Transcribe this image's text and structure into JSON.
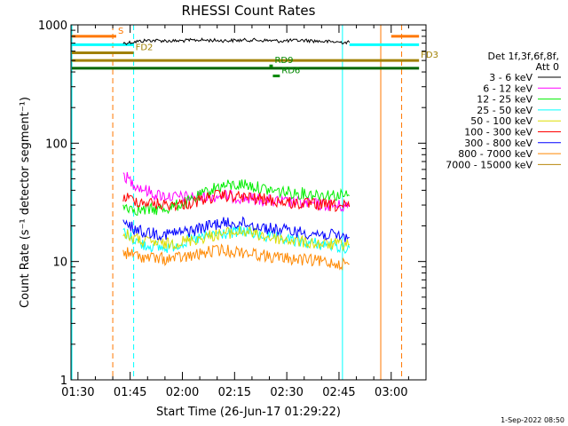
{
  "chart_data": {
    "type": "line",
    "title": "RHESSI Count Rates",
    "xlabel": "Start Time (26-Jun-17 01:29:22)",
    "ylabel": "Count Rate (s⁻¹ detector segment⁻¹)",
    "y_scale": "log",
    "ylim": [
      1,
      1000
    ],
    "xlim": [
      "01:28",
      "03:10"
    ],
    "x_ticks": [
      "01:30",
      "01:45",
      "02:00",
      "02:15",
      "02:30",
      "02:45",
      "03:00"
    ],
    "y_ticks": [
      1,
      10,
      100,
      1000
    ],
    "legend_header": [
      "Det 1f,3f,6f,8f,",
      "Att 0"
    ],
    "legend_placement": "right",
    "series": [
      {
        "name": "3 - 6 keV",
        "color": "#000000",
        "x": [
          "01:43",
          "01:50",
          "01:58",
          "02:05",
          "02:12",
          "02:20",
          "02:28",
          "02:35",
          "02:42",
          "02:48"
        ],
        "values": [
          700,
          740,
          730,
          745,
          735,
          745,
          730,
          740,
          720,
          710
        ]
      },
      {
        "name": "6 - 12 keV",
        "color": "#ff00ff",
        "x": [
          "01:43",
          "01:45",
          "01:48",
          "01:52",
          "01:58",
          "02:05",
          "02:12",
          "02:20",
          "02:28",
          "02:35",
          "02:42",
          "02:48"
        ],
        "values": [
          55,
          48,
          42,
          37,
          35,
          35,
          36,
          34,
          32,
          31,
          30,
          29
        ]
      },
      {
        "name": "12 - 25 keV",
        "color": "#00ee00",
        "x": [
          "01:43",
          "01:48",
          "01:55",
          "02:02",
          "02:10",
          "02:18",
          "02:25",
          "02:32",
          "02:40",
          "02:48"
        ],
        "values": [
          30,
          27,
          28,
          32,
          43,
          45,
          40,
          38,
          37,
          36
        ]
      },
      {
        "name": "25 - 50 keV",
        "color": "#00ffff",
        "x": [
          "01:43",
          "01:48",
          "01:55",
          "02:02",
          "02:10",
          "02:18",
          "02:25",
          "02:32",
          "02:40",
          "02:48"
        ],
        "values": [
          18,
          14,
          13,
          15,
          17,
          18,
          16,
          15,
          14,
          13
        ]
      },
      {
        "name": "50 - 100 keV",
        "color": "#dddd00",
        "x": [
          "01:43",
          "01:48",
          "01:55",
          "02:02",
          "02:10",
          "02:18",
          "02:25",
          "02:32",
          "02:40",
          "02:48"
        ],
        "values": [
          17,
          15,
          14,
          15,
          17,
          18,
          16,
          15,
          14,
          14
        ]
      },
      {
        "name": "100 - 300 keV",
        "color": "#ff0000",
        "x": [
          "01:43",
          "01:48",
          "01:55",
          "02:02",
          "02:10",
          "02:18",
          "02:25",
          "02:32",
          "02:40",
          "02:48"
        ],
        "values": [
          35,
          32,
          30,
          31,
          36,
          35,
          33,
          31,
          30,
          29
        ]
      },
      {
        "name": "300 - 800 keV",
        "color": "#0000ff",
        "x": [
          "01:43",
          "01:48",
          "01:55",
          "02:02",
          "02:10",
          "02:18",
          "02:25",
          "02:32",
          "02:40",
          "02:48"
        ],
        "values": [
          21,
          18,
          17,
          18,
          21,
          21,
          19,
          18,
          17,
          16
        ]
      },
      {
        "name": "800 - 7000 keV",
        "color": "#ff8800",
        "x": [
          "01:43",
          "01:48",
          "01:55",
          "02:02",
          "02:10",
          "02:18",
          "02:25",
          "02:32",
          "02:40",
          "02:48"
        ],
        "values": [
          12,
          11,
          10.5,
          11,
          12.5,
          12,
          11,
          10.5,
          10,
          9.5
        ]
      },
      {
        "name": "7000 - 15000 keV",
        "color": "#b8860b",
        "x": [],
        "values": []
      }
    ],
    "flag_bars": [
      {
        "label": "S",
        "color": "#ff7700",
        "y": 800,
        "segments": [
          [
            "01:28",
            "01:41"
          ],
          [
            "03:00",
            "03:08"
          ]
        ]
      },
      {
        "label": "",
        "color": "#00ffff",
        "y": 680,
        "segments": [
          [
            "01:28",
            "01:46"
          ],
          [
            "02:48",
            "03:08"
          ]
        ]
      },
      {
        "label": "FD2",
        "color": "#a08000",
        "y": 580,
        "segments": [
          [
            "01:28",
            "01:46"
          ]
        ]
      },
      {
        "label": "FD3",
        "color": "#a08000",
        "y": 500,
        "segments": [
          [
            "01:28",
            "03:08"
          ]
        ]
      },
      {
        "label": "",
        "color": "#006600",
        "y": 430,
        "segments": [
          [
            "01:28",
            "03:08"
          ]
        ]
      },
      {
        "label": "RD9",
        "color": "#008800",
        "y": 450,
        "segments": [
          [
            "02:25",
            "02:26"
          ]
        ]
      },
      {
        "label": "RD6",
        "color": "#008800",
        "y": 370,
        "segments": [
          [
            "02:26",
            "02:28"
          ]
        ]
      }
    ],
    "vertical_lines": [
      {
        "x": "01:28",
        "color": "#00ffff",
        "style": "solid"
      },
      {
        "x": "01:40",
        "color": "#ff7700",
        "style": "dashed"
      },
      {
        "x": "01:46",
        "color": "#00ffff",
        "style": "dashed"
      },
      {
        "x": "02:46",
        "color": "#00ffff",
        "style": "solid"
      },
      {
        "x": "02:57",
        "color": "#ff7700",
        "style": "solid"
      },
      {
        "x": "03:03",
        "color": "#ff7700",
        "style": "dashed"
      }
    ],
    "footer": "1-Sep-2022 08:50"
  }
}
